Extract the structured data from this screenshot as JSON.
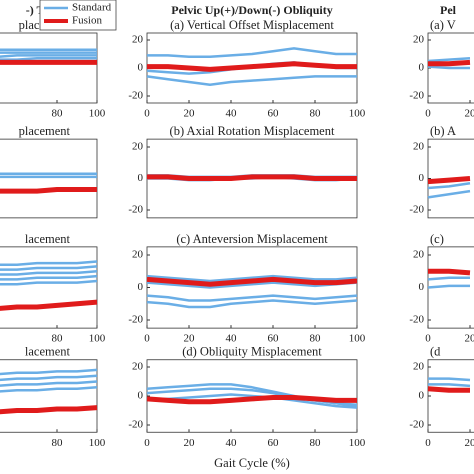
{
  "legend": [
    {
      "name": "Standard",
      "color": "#6aaee6"
    },
    {
      "name": "Fusion",
      "color": "#e01b1b"
    }
  ],
  "xlabel": "Gait Cycle (%)",
  "chart_data": [
    {
      "type": "line",
      "header": "-) Tilt",
      "title": "placement",
      "x": [
        0,
        10,
        20,
        30,
        40,
        50,
        60,
        70,
        80,
        90,
        100
      ],
      "xlim": [
        0,
        100
      ],
      "xticks": [
        80,
        100
      ],
      "ylim": [
        -25,
        25
      ],
      "series": [
        {
          "color": "#6aaee6",
          "line_width": 2.5,
          "values": [
            12,
            12,
            12,
            12,
            13,
            13,
            13,
            13,
            13,
            13,
            13
          ]
        },
        {
          "color": "#6aaee6",
          "line_width": 2.5,
          "values": [
            10,
            10,
            10,
            10,
            10,
            11,
            11,
            11,
            11,
            11,
            11
          ]
        },
        {
          "color": "#6aaee6",
          "line_width": 2.5,
          "values": [
            8,
            8,
            8,
            8,
            8,
            8,
            9,
            9,
            9,
            9,
            9
          ]
        },
        {
          "color": "#6aaee6",
          "line_width": 2.5,
          "values": [
            6,
            6,
            6,
            6,
            6,
            6,
            6,
            7,
            7,
            7,
            7
          ]
        },
        {
          "color": "#e01b1b",
          "line_width": 5,
          "values": [
            4,
            4,
            4,
            4,
            4,
            4,
            4,
            4,
            4,
            4,
            4
          ]
        }
      ]
    },
    {
      "type": "line",
      "title": "placement",
      "x": [
        0,
        10,
        20,
        30,
        40,
        50,
        60,
        70,
        80,
        90,
        100
      ],
      "xlim": [
        0,
        100
      ],
      "ylim": [
        -25,
        25
      ],
      "series": [
        {
          "color": "#6aaee6",
          "line_width": 2.5,
          "values": [
            3,
            3,
            3,
            3,
            3,
            3,
            3,
            3,
            3,
            3,
            3
          ]
        },
        {
          "color": "#6aaee6",
          "line_width": 2.5,
          "values": [
            1,
            1,
            1,
            1,
            1,
            1,
            1,
            1,
            1,
            1,
            1
          ]
        },
        {
          "color": "#e01b1b",
          "line_width": 5,
          "values": [
            -8,
            -8,
            -8,
            -8,
            -8,
            -8,
            -8,
            -8,
            -7,
            -7,
            -7
          ]
        }
      ]
    },
    {
      "type": "line",
      "title": "lacement",
      "x": [
        0,
        10,
        20,
        30,
        40,
        50,
        60,
        70,
        80,
        90,
        100
      ],
      "xlim": [
        0,
        100
      ],
      "xticks": [
        80,
        100
      ],
      "ylim": [
        -25,
        25
      ],
      "series": [
        {
          "color": "#6aaee6",
          "line_width": 2.5,
          "values": [
            13,
            13,
            13,
            13,
            14,
            14,
            14,
            15,
            15,
            15,
            16
          ]
        },
        {
          "color": "#6aaee6",
          "line_width": 2.5,
          "values": [
            10,
            10,
            10,
            10,
            11,
            11,
            11,
            12,
            12,
            12,
            13
          ]
        },
        {
          "color": "#6aaee6",
          "line_width": 2.5,
          "values": [
            7,
            7,
            7,
            7,
            8,
            8,
            8,
            9,
            9,
            9,
            10
          ]
        },
        {
          "color": "#6aaee6",
          "line_width": 2.5,
          "values": [
            4,
            4,
            4,
            4,
            5,
            5,
            5,
            6,
            6,
            6,
            7
          ]
        },
        {
          "color": "#6aaee6",
          "line_width": 2.5,
          "values": [
            1,
            1,
            1,
            1,
            2,
            2,
            2,
            3,
            3,
            3,
            4
          ]
        },
        {
          "color": "#e01b1b",
          "line_width": 5,
          "values": [
            -15,
            -15,
            -14,
            -14,
            -13,
            -13,
            -12,
            -12,
            -11,
            -10,
            -9
          ]
        }
      ]
    },
    {
      "type": "line",
      "title": "lacement",
      "x": [
        0,
        10,
        20,
        30,
        40,
        50,
        60,
        70,
        80,
        90,
        100
      ],
      "xlim": [
        0,
        100
      ],
      "xticks": [
        80,
        100
      ],
      "ylim": [
        -25,
        25
      ],
      "series": [
        {
          "color": "#6aaee6",
          "line_width": 2.5,
          "values": [
            14,
            14,
            14,
            15,
            15,
            15,
            16,
            16,
            17,
            17,
            18
          ]
        },
        {
          "color": "#6aaee6",
          "line_width": 2.5,
          "values": [
            10,
            10,
            10,
            11,
            11,
            11,
            12,
            12,
            13,
            13,
            14
          ]
        },
        {
          "color": "#6aaee6",
          "line_width": 2.5,
          "values": [
            6,
            6,
            6,
            7,
            7,
            7,
            8,
            8,
            9,
            9,
            10
          ]
        },
        {
          "color": "#6aaee6",
          "line_width": 2.5,
          "values": [
            2,
            2,
            2,
            3,
            3,
            3,
            4,
            4,
            5,
            5,
            6
          ]
        },
        {
          "color": "#e01b1b",
          "line_width": 5,
          "values": [
            -12,
            -12,
            -12,
            -11,
            -11,
            -11,
            -10,
            -10,
            -9,
            -9,
            -8
          ]
        }
      ]
    },
    {
      "type": "line",
      "header": "Pelvic Up(+)/Down(-) Obliquity",
      "title": "(a) Vertical Offset Misplacement",
      "x": [
        0,
        10,
        20,
        30,
        40,
        50,
        60,
        70,
        80,
        90,
        100
      ],
      "xlim": [
        0,
        100
      ],
      "xticks": [
        0,
        20,
        40,
        60,
        80,
        100
      ],
      "ylim": [
        -25,
        25
      ],
      "yticks": [
        -20,
        0,
        20
      ],
      "series": [
        {
          "color": "#6aaee6",
          "line_width": 2.5,
          "values": [
            9,
            9,
            8,
            8,
            9,
            10,
            12,
            14,
            12,
            10,
            10
          ]
        },
        {
          "color": "#6aaee6",
          "line_width": 2.5,
          "values": [
            -2,
            -3,
            -4,
            -3,
            -1,
            1,
            3,
            4,
            2,
            0,
            0
          ]
        },
        {
          "color": "#6aaee6",
          "line_width": 2.5,
          "values": [
            -6,
            -8,
            -10,
            -12,
            -10,
            -9,
            -8,
            -7,
            -6,
            -6,
            -6
          ]
        },
        {
          "color": "#e01b1b",
          "line_width": 5,
          "values": [
            1,
            1,
            0,
            -1,
            0,
            1,
            2,
            3,
            2,
            1,
            1
          ]
        }
      ]
    },
    {
      "type": "line",
      "title": "(b) Axial Rotation Misplacement",
      "x": [
        0,
        10,
        20,
        30,
        40,
        50,
        60,
        70,
        80,
        90,
        100
      ],
      "xlim": [
        0,
        100
      ],
      "ylim": [
        -25,
        25
      ],
      "yticks": [
        -20,
        0,
        20
      ],
      "series": [
        {
          "color": "#6aaee6",
          "line_width": 2.5,
          "values": [
            2,
            2,
            1,
            1,
            1,
            2,
            2,
            2,
            1,
            1,
            1
          ]
        },
        {
          "color": "#6aaee6",
          "line_width": 2.5,
          "values": [
            0,
            0,
            -1,
            -1,
            0,
            0,
            1,
            0,
            -1,
            -1,
            0
          ]
        },
        {
          "color": "#e01b1b",
          "line_width": 5,
          "values": [
            1,
            1,
            0,
            0,
            0,
            1,
            1,
            1,
            0,
            0,
            0
          ]
        }
      ]
    },
    {
      "type": "line",
      "title": "(c) Anteversion Misplacement",
      "x": [
        0,
        10,
        20,
        30,
        40,
        50,
        60,
        70,
        80,
        90,
        100
      ],
      "xlim": [
        0,
        100
      ],
      "xticks": [
        0,
        20,
        40,
        60,
        80,
        100
      ],
      "ylim": [
        -25,
        25
      ],
      "yticks": [
        -20,
        0,
        20
      ],
      "series": [
        {
          "color": "#6aaee6",
          "line_width": 2.5,
          "values": [
            7,
            6,
            5,
            4,
            5,
            6,
            7,
            6,
            5,
            5,
            6
          ]
        },
        {
          "color": "#6aaee6",
          "line_width": 2.5,
          "values": [
            3,
            2,
            1,
            0,
            1,
            2,
            3,
            2,
            1,
            2,
            3
          ]
        },
        {
          "color": "#6aaee6",
          "line_width": 2.5,
          "values": [
            -5,
            -6,
            -8,
            -8,
            -7,
            -6,
            -5,
            -6,
            -7,
            -6,
            -5
          ]
        },
        {
          "color": "#6aaee6",
          "line_width": 2.5,
          "values": [
            -9,
            -10,
            -12,
            -12,
            -10,
            -9,
            -8,
            -9,
            -10,
            -9,
            -8
          ]
        },
        {
          "color": "#e01b1b",
          "line_width": 5,
          "values": [
            5,
            4,
            3,
            2,
            3,
            4,
            5,
            4,
            3,
            3,
            4
          ]
        }
      ]
    },
    {
      "type": "line",
      "title": "(d) Obliquity Misplacement",
      "x": [
        0,
        10,
        20,
        30,
        40,
        50,
        60,
        70,
        80,
        90,
        100
      ],
      "xlim": [
        0,
        100
      ],
      "xticks": [
        0,
        20,
        40,
        60,
        80,
        100
      ],
      "ylim": [
        -25,
        25
      ],
      "yticks": [
        -20,
        0,
        20
      ],
      "series": [
        {
          "color": "#6aaee6",
          "line_width": 2.5,
          "values": [
            5,
            6,
            7,
            8,
            8,
            6,
            3,
            0,
            -3,
            -5,
            -7
          ]
        },
        {
          "color": "#6aaee6",
          "line_width": 2.5,
          "values": [
            2,
            3,
            4,
            5,
            5,
            4,
            2,
            -1,
            -3,
            -5,
            -6
          ]
        },
        {
          "color": "#6aaee6",
          "line_width": 2.5,
          "values": [
            -2,
            -2,
            -1,
            0,
            1,
            0,
            -1,
            -3,
            -5,
            -7,
            -8
          ]
        },
        {
          "color": "#e01b1b",
          "line_width": 5,
          "values": [
            -2,
            -3,
            -4,
            -4,
            -3,
            -2,
            -1,
            -1,
            -2,
            -3,
            -3
          ]
        }
      ]
    },
    {
      "type": "line",
      "header": "Pel",
      "title": "(a) V",
      "x": [
        0,
        10,
        20
      ],
      "xlim": [
        0,
        100
      ],
      "xticks": [
        0,
        20
      ],
      "ylim": [
        -25,
        25
      ],
      "yticks": [
        -20,
        0,
        20
      ],
      "series": [
        {
          "color": "#6aaee6",
          "line_width": 2.5,
          "values": [
            5,
            6,
            7
          ]
        },
        {
          "color": "#6aaee6",
          "line_width": 2.5,
          "values": [
            1,
            0,
            0
          ]
        },
        {
          "color": "#e01b1b",
          "line_width": 5,
          "values": [
            3,
            3,
            4
          ]
        }
      ]
    },
    {
      "type": "line",
      "title": "(b) A",
      "x": [
        0,
        10,
        20
      ],
      "xlim": [
        0,
        100
      ],
      "ylim": [
        -25,
        25
      ],
      "yticks": [
        -20,
        0,
        20
      ],
      "series": [
        {
          "color": "#6aaee6",
          "line_width": 2.5,
          "values": [
            -6,
            -5,
            -3
          ]
        },
        {
          "color": "#6aaee6",
          "line_width": 2.5,
          "values": [
            -12,
            -10,
            -8
          ]
        },
        {
          "color": "#e01b1b",
          "line_width": 5,
          "values": [
            -2,
            -1,
            0
          ]
        }
      ]
    },
    {
      "type": "line",
      "title": "(c)",
      "x": [
        0,
        10,
        20
      ],
      "xlim": [
        0,
        100
      ],
      "xticks": [
        0,
        20
      ],
      "ylim": [
        -25,
        25
      ],
      "yticks": [
        -20,
        0,
        20
      ],
      "series": [
        {
          "color": "#6aaee6",
          "line_width": 2.5,
          "values": [
            5,
            6,
            6
          ]
        },
        {
          "color": "#6aaee6",
          "line_width": 2.5,
          "values": [
            0,
            1,
            1
          ]
        },
        {
          "color": "#e01b1b",
          "line_width": 5,
          "values": [
            10,
            10,
            9
          ]
        }
      ]
    },
    {
      "type": "line",
      "title": "(d",
      "x": [
        0,
        10,
        20
      ],
      "xlim": [
        0,
        100
      ],
      "xticks": [
        0,
        20
      ],
      "ylim": [
        -25,
        25
      ],
      "yticks": [
        -20,
        0,
        20
      ],
      "series": [
        {
          "color": "#6aaee6",
          "line_width": 2.5,
          "values": [
            12,
            12,
            11
          ]
        },
        {
          "color": "#6aaee6",
          "line_width": 2.5,
          "values": [
            8,
            8,
            7
          ]
        },
        {
          "color": "#e01b1b",
          "line_width": 5,
          "values": [
            5,
            4,
            4
          ]
        }
      ]
    }
  ]
}
